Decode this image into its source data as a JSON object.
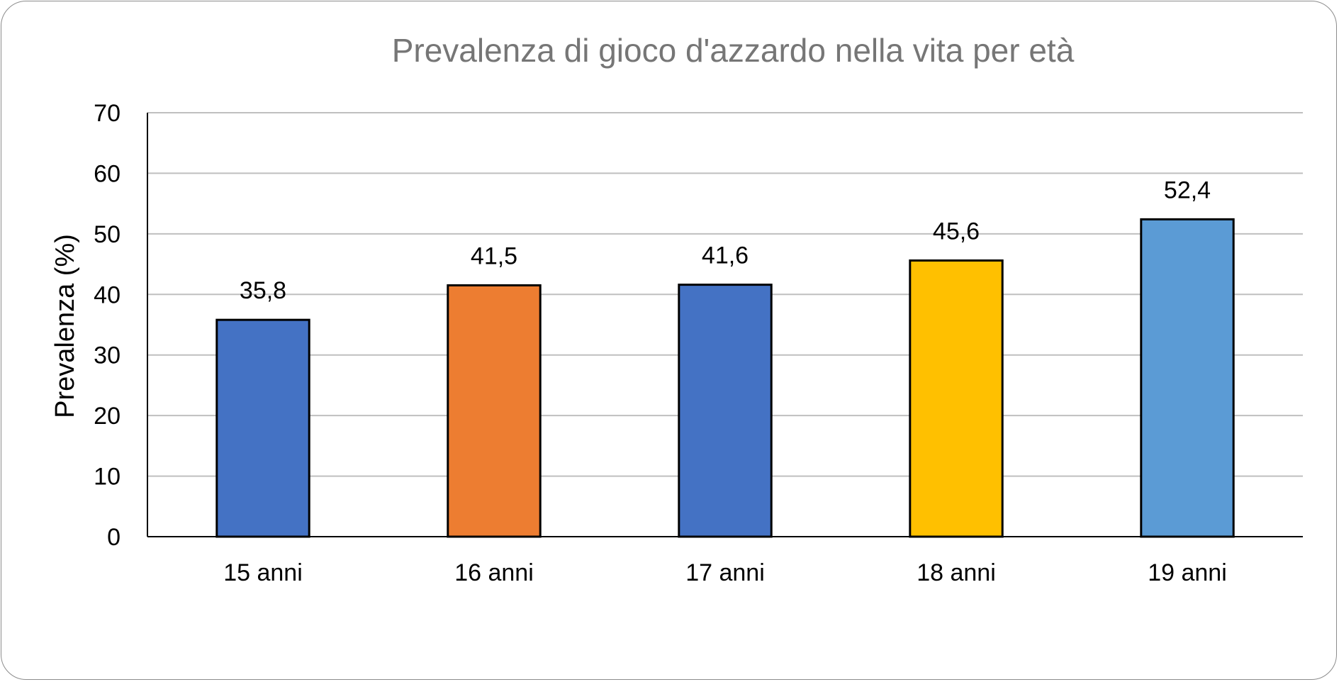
{
  "chart_data": {
    "type": "bar",
    "title": "Prevalenza di gioco d'azzardo nella vita per età",
    "xlabel": "",
    "ylabel": "Prevalenza (%)",
    "categories": [
      "15 anni",
      "16 anni",
      "17 anni",
      "18 anni",
      "19 anni"
    ],
    "values": [
      35.8,
      41.5,
      41.6,
      45.6,
      52.4
    ],
    "data_labels": [
      "35,8",
      "41,5",
      "41,6",
      "45,6",
      "52,4"
    ],
    "bar_colors": [
      "#4472c4",
      "#ed7d31",
      "#4472c4",
      "#ffc000",
      "#5b9bd5"
    ],
    "ylim": [
      0,
      70
    ],
    "yticks": [
      0,
      10,
      20,
      30,
      40,
      50,
      60,
      70
    ],
    "grid": true,
    "legend": "none"
  }
}
